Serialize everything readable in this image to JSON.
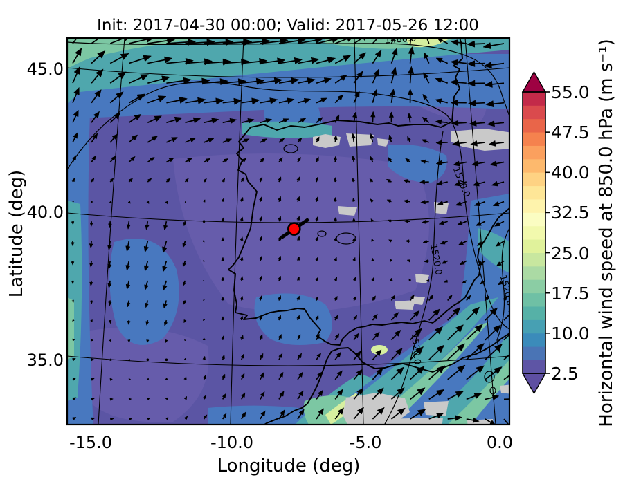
{
  "figure": {
    "title": "Init: 2017-04-30 00:00; Valid: 2017-05-26 12:00"
  },
  "axes": {
    "x_label": "Longitude (deg)",
    "y_label": "Latitude (deg)",
    "x_ticks": [
      "-15.0",
      "-10.0",
      "-5.0",
      "0.0"
    ],
    "y_ticks": [
      "45.0",
      "40.0",
      "35.0"
    ]
  },
  "colorbar": {
    "label": "Horizontal wind speed at 850.0 hPa (m s⁻¹)",
    "tick_labels": [
      "55.0",
      "47.5",
      "40.0",
      "32.5",
      "25.0",
      "17.5",
      "10.0",
      "2.5"
    ],
    "level_colors_bottom_to_top": [
      "#5e55a5",
      "#4a74b5",
      "#3b8bba",
      "#47a0b3",
      "#56b1a7",
      "#6fc0a5",
      "#8bcda4",
      "#abdaa4",
      "#c8e79f",
      "#e0f29b",
      "#f2f9ad",
      "#fbfdc2",
      "#fef3ac",
      "#fee697",
      "#fed283",
      "#fdb96d",
      "#fba05e",
      "#f5824e",
      "#e96549",
      "#da4a4d",
      "#c32a49"
    ],
    "under_color": "#5e4fa2",
    "over_color": "#9e0142"
  },
  "map_colors": {
    "base_purple": "#5b55a4",
    "light_purple": "#665cab",
    "blue": "#4878bf",
    "teal": "#4fa7ad",
    "green": "#7cc7a3",
    "pale_yellow_green": "#d7ef9f",
    "terrain_gray": "#c9c9c9",
    "coast_black": "#000000"
  },
  "chart_data": {
    "type": "heatmap",
    "title": "Init: 2017-04-30 00:00; Valid: 2017-05-26 12:00",
    "xlabel": "Longitude (deg)",
    "ylabel": "Latitude (deg)",
    "x_tick_values": [
      -15.0,
      -10.0,
      -5.0,
      0.0
    ],
    "y_tick_values": [
      45.0,
      40.0,
      35.0
    ],
    "colorbar_tick_values": [
      55.0,
      47.5,
      40.0,
      32.5,
      25.0,
      17.5,
      10.0,
      2.5
    ],
    "wind_speed_levels": {
      "min": 2.5,
      "max": 55.0,
      "step": 2.5,
      "units": "m s⁻¹"
    },
    "contour_labels": [
      {
        "text": "1480.0",
        "fx": 0.755,
        "fy": 0.01,
        "rot": -4
      },
      {
        "text": "1520.0",
        "fx": 0.885,
        "fy": 0.375,
        "rot": 68
      },
      {
        "text": "1520.0",
        "fx": 0.828,
        "fy": 0.575,
        "rot": 80
      },
      {
        "text": "1520.0",
        "fx": 0.988,
        "fy": 0.655,
        "rot": 76
      },
      {
        "text": "1520.0",
        "fx": 0.782,
        "fy": 0.805,
        "rot": 85
      }
    ],
    "marker": {
      "x_frac": 0.513,
      "y_frac": 0.494,
      "approx_lon": -7.5,
      "approx_lat": 39.5,
      "fill": "#ff0000"
    },
    "quiver": {
      "cols": 10,
      "rows": 9,
      "u": [
        [
          6,
          14,
          17,
          17,
          16,
          14,
          8,
          2,
          -8,
          -12
        ],
        [
          4,
          10,
          14,
          13,
          12,
          8,
          4,
          1,
          -9,
          -11
        ],
        [
          3,
          5,
          7,
          6,
          4,
          2,
          -1,
          -1,
          -8,
          -9
        ],
        [
          1,
          2,
          2,
          1,
          1,
          1,
          -1,
          -4,
          -7,
          -7
        ],
        [
          0,
          -1,
          -2,
          0,
          1,
          1,
          0,
          -3,
          -5,
          -5
        ],
        [
          0,
          -1,
          -2,
          0,
          1,
          1,
          1,
          -1,
          -3,
          -4
        ],
        [
          1,
          0,
          -1,
          0,
          1,
          1,
          2,
          6,
          9,
          8
        ],
        [
          2,
          1,
          0,
          1,
          2,
          3,
          5,
          8,
          11,
          10
        ],
        [
          2,
          2,
          1,
          2,
          3,
          4,
          6,
          9,
          8,
          5
        ]
      ],
      "v": [
        [
          8,
          4,
          1,
          1,
          2,
          3,
          6,
          10,
          2,
          -2
        ],
        [
          10,
          6,
          2,
          1,
          2,
          2,
          8,
          10,
          1,
          -1
        ],
        [
          6,
          5,
          3,
          2,
          2,
          3,
          6,
          4,
          -1,
          -1
        ],
        [
          2,
          2,
          2,
          2,
          3,
          3,
          2,
          1,
          -2,
          -2
        ],
        [
          -3,
          -6,
          -7,
          2,
          3,
          3,
          2,
          0,
          -2,
          -3
        ],
        [
          -2,
          -5,
          -6,
          2,
          3,
          2,
          2,
          1,
          -2,
          -3
        ],
        [
          0,
          -2,
          -3,
          2,
          3,
          3,
          3,
          6,
          9,
          8
        ],
        [
          1,
          0,
          1,
          3,
          4,
          4,
          6,
          8,
          10,
          9
        ],
        [
          1,
          0,
          1,
          3,
          5,
          6,
          7,
          6,
          0,
          -6
        ]
      ]
    }
  }
}
